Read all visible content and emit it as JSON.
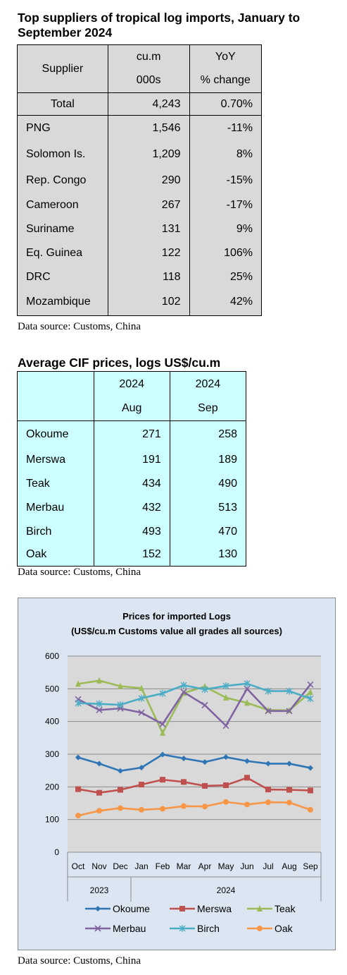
{
  "table1": {
    "title": "Top suppliers of tropical log imports, January to September 2024",
    "header": {
      "supplier": "Supplier",
      "col2_line1": "cu.m",
      "col2_line2": "000s",
      "col3_line1": "YoY",
      "col3_line2": "% change"
    },
    "total": {
      "label": "Total",
      "volume": "4,243",
      "change": "0.70%"
    },
    "rows": [
      {
        "supplier": "PNG",
        "volume": "1,546",
        "change": "-11%"
      },
      {
        "supplier": "Solomon Is.",
        "volume": "1,209",
        "change": "8%"
      },
      {
        "supplier": "Rep. Congo",
        "volume": "290",
        "change": "-15%"
      },
      {
        "supplier": "Cameroon",
        "volume": "267",
        "change": "-17%"
      },
      {
        "supplier": "Suriname",
        "volume": "131",
        "change": "9%"
      },
      {
        "supplier": "Eq. Guinea",
        "volume": "122",
        "change": "106%"
      },
      {
        "supplier": "DRC",
        "volume": "118",
        "change": "25%"
      },
      {
        "supplier": "Mozambique",
        "volume": "102",
        "change": "42%"
      }
    ],
    "source": "Data source: Customs, China",
    "background": "#d9d9d9"
  },
  "table2": {
    "title": "Average CIF prices, logs US$/cu.m",
    "header": {
      "col2_line1": "2024",
      "col2_line2": "Aug",
      "col3_line1": "2024",
      "col3_line2": "Sep"
    },
    "rows": [
      {
        "species": "Okoume",
        "aug": "271",
        "sep": "258"
      },
      {
        "species": "Merswa",
        "aug": "191",
        "sep": "189"
      },
      {
        "species": "Teak",
        "aug": "434",
        "sep": "490"
      },
      {
        "species": "Merbau",
        "aug": "432",
        "sep": "513"
      },
      {
        "species": "Birch",
        "aug": "493",
        "sep": "470"
      },
      {
        "species": "Oak",
        "aug": "152",
        "sep": "130"
      }
    ],
    "source": "Data source: Customs, China",
    "background": "#ccffff"
  },
  "chart_data": {
    "type": "line",
    "title": "Prices for imported Logs",
    "subtitle": "(US$/cu.m Customs value all grades all sources)",
    "categories": [
      "Oct",
      "Nov",
      "Dec",
      "Jan",
      "Feb",
      "Mar",
      "Apr",
      "May",
      "Jun",
      "Jul",
      "Aug",
      "Sep"
    ],
    "year_labels": [
      "2023",
      "2024"
    ],
    "year_spans": [
      [
        0,
        2
      ],
      [
        3,
        11
      ]
    ],
    "ylim": [
      0,
      600
    ],
    "yticks": [
      0,
      100,
      200,
      300,
      400,
      500,
      600
    ],
    "grid": true,
    "legend": "bottom",
    "series": [
      {
        "name": "Okoume",
        "color": "#2e75b6",
        "marker": "diamond",
        "values": [
          290,
          271,
          249,
          259,
          299,
          287,
          276,
          291,
          279,
          271,
          271,
          258
        ]
      },
      {
        "name": "Merswa",
        "color": "#c0504d",
        "marker": "square",
        "values": [
          193,
          182,
          191,
          207,
          222,
          215,
          203,
          205,
          228,
          192,
          191,
          189
        ]
      },
      {
        "name": "Teak",
        "color": "#9bbb59",
        "marker": "triangle",
        "values": [
          515,
          525,
          508,
          502,
          365,
          487,
          507,
          473,
          457,
          435,
          434,
          490
        ]
      },
      {
        "name": "Merbau",
        "color": "#8064a2",
        "marker": "x",
        "values": [
          468,
          435,
          440,
          427,
          392,
          490,
          450,
          387,
          500,
          432,
          432,
          513
        ]
      },
      {
        "name": "Birch",
        "color": "#4bacc6",
        "marker": "star",
        "values": [
          456,
          454,
          451,
          471,
          486,
          511,
          498,
          509,
          516,
          493,
          493,
          470
        ]
      },
      {
        "name": "Oak",
        "color": "#f79646",
        "marker": "circle",
        "values": [
          112,
          127,
          135,
          130,
          133,
          141,
          140,
          154,
          146,
          153,
          152,
          130
        ]
      }
    ]
  },
  "chart_source": "Data source: Customs, China"
}
